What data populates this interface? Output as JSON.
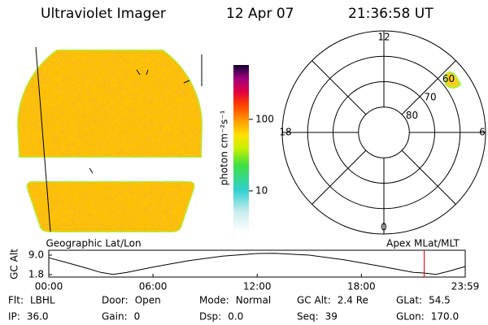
{
  "header": {
    "instrument": "Ultraviolet Imager",
    "date": "12 Apr 07",
    "time": "21:36:58 UT"
  },
  "image": {
    "title": "Geographic Lat/Lon"
  },
  "colorbar": {
    "label": "photon cm⁻²s⁻¹",
    "scale": "log",
    "lim": [
      2.7,
      575
    ],
    "ticks": [
      10,
      100
    ]
  },
  "polar": {
    "title": "Apex MLat/MLT",
    "lat_lim": [
      50,
      90
    ],
    "lat_ticks": [
      60,
      70,
      80
    ],
    "mlt_ticks": [
      12,
      18,
      6,
      0
    ]
  },
  "altitude": {
    "ylabel": "GC Alt",
    "x": [
      0,
      1,
      2,
      3,
      3.7,
      4.5,
      6,
      8,
      10,
      12,
      13,
      15,
      17,
      19,
      20,
      21,
      21.6,
      22.3,
      23,
      23.98
    ],
    "values": [
      8.0,
      6.3,
      4.5,
      2.6,
      1.9,
      2.6,
      4.6,
      6.9,
      8.6,
      9.6,
      9.7,
      9.0,
      7.3,
      5.0,
      3.8,
      2.6,
      2.4,
      1.9,
      3.0,
      4.8
    ],
    "xlim": [
      0,
      23.98
    ],
    "ylim": [
      0.9,
      10.8
    ],
    "xticks": [
      {
        "value": 0,
        "label": "00:00"
      },
      {
        "value": 6,
        "label": "06:00"
      },
      {
        "value": 12,
        "label": "12:00"
      },
      {
        "value": 18,
        "label": "18:00"
      },
      {
        "value": 23.98,
        "label": "23:59"
      }
    ],
    "yticks": [
      1.8,
      {
        "value": 9,
        "label": "9.0"
      }
    ],
    "color": "#000000",
    "marker_x": 21.616,
    "marker_color": "#e00000"
  },
  "footer": {
    "rows": [
      [
        {
          "label": "Flt:",
          "value": "LBHL"
        },
        {
          "label": "Door:",
          "value": "Open"
        },
        {
          "label": "Mode:",
          "value": "Normal"
        },
        {
          "label": "GC Alt:",
          "value": "2.4 Re"
        },
        {
          "label": "GLat:",
          "value": "54.5"
        }
      ],
      [
        {
          "label": "IP:",
          "value": "36.0"
        },
        {
          "label": "Gain:",
          "value": "0"
        },
        {
          "label": "Dsp:",
          "value": "0.0"
        },
        {
          "label": "Seq:",
          "value": "39"
        },
        {
          "label": "GLon:",
          "value": "170.0"
        }
      ]
    ]
  }
}
